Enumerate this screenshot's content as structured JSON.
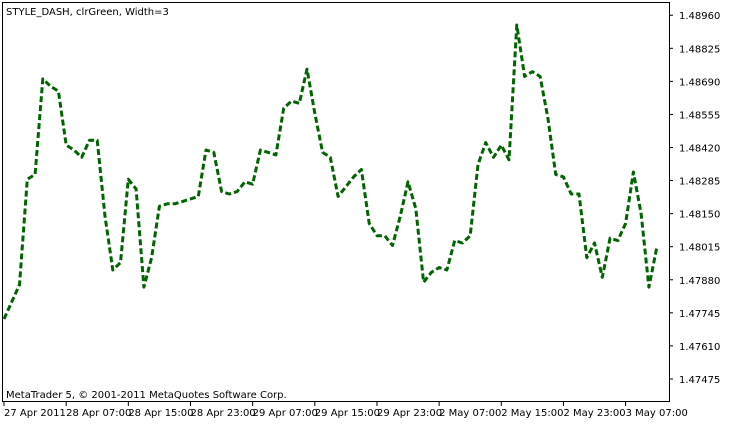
{
  "chart_data": {
    "type": "line",
    "title": "STYLE_DASH, clrGreen, Width=3",
    "footer": "MetaTrader 5, © 2001-2011 MetaQuotes Software Corp.",
    "series": [
      {
        "color": "#006400",
        "line_style": "dash",
        "width": 3,
        "values": [
          1.4772,
          1.4779,
          1.4786,
          1.4829,
          1.4831,
          1.487,
          1.4867,
          1.4865,
          1.4843,
          1.4841,
          1.4838,
          1.4845,
          1.4845,
          1.4814,
          1.4792,
          1.4795,
          1.4829,
          1.4825,
          1.4785,
          1.4797,
          1.4818,
          1.4819,
          1.4819,
          1.482,
          1.4821,
          1.4822,
          1.4841,
          1.484,
          1.4824,
          1.4823,
          1.4824,
          1.4828,
          1.4827,
          1.4841,
          1.484,
          1.4839,
          1.4858,
          1.4861,
          1.486,
          1.4874,
          1.4856,
          1.484,
          1.4838,
          1.4822,
          1.4826,
          1.483,
          1.4833,
          1.4811,
          1.4806,
          1.4806,
          1.4802,
          1.4814,
          1.4828,
          1.4817,
          1.4787,
          1.4791,
          1.4793,
          1.4792,
          1.4804,
          1.4803,
          1.4806,
          1.4835,
          1.4844,
          1.4838,
          1.4843,
          1.4837,
          1.4892,
          1.4871,
          1.4873,
          1.4871,
          1.4854,
          1.4831,
          1.483,
          1.4823,
          1.4823,
          1.4797,
          1.4803,
          1.4789,
          1.4805,
          1.4804,
          1.4811,
          1.4832,
          1.4815,
          1.4785,
          1.4801
        ]
      }
    ],
    "y_ticks": [
      1.4896,
      1.48825,
      1.4869,
      1.48555,
      1.4842,
      1.48285,
      1.4815,
      1.48015,
      1.4788,
      1.47745,
      1.4761,
      1.47475
    ],
    "y_tick_labels": [
      "1.48960",
      "1.48825",
      "1.48690",
      "1.48555",
      "1.48420",
      "1.48285",
      "1.48150",
      "1.48015",
      "1.47880",
      "1.47745",
      "1.47610",
      "1.47475"
    ],
    "ylim": [
      1.47385,
      1.4901
    ],
    "x_tick_labels": [
      "27 Apr 2011",
      "28 Apr 07:00",
      "28 Apr 15:00",
      "28 Apr 23:00",
      "29 Apr 07:00",
      "29 Apr 15:00",
      "29 Apr 23:00",
      "2 May 07:00",
      "2 May 15:00",
      "2 May 23:00",
      "3 May 07:00"
    ],
    "x_tick_index": [
      0,
      8,
      16,
      24,
      32,
      40,
      48,
      56,
      64,
      72,
      80
    ],
    "grid": false
  }
}
